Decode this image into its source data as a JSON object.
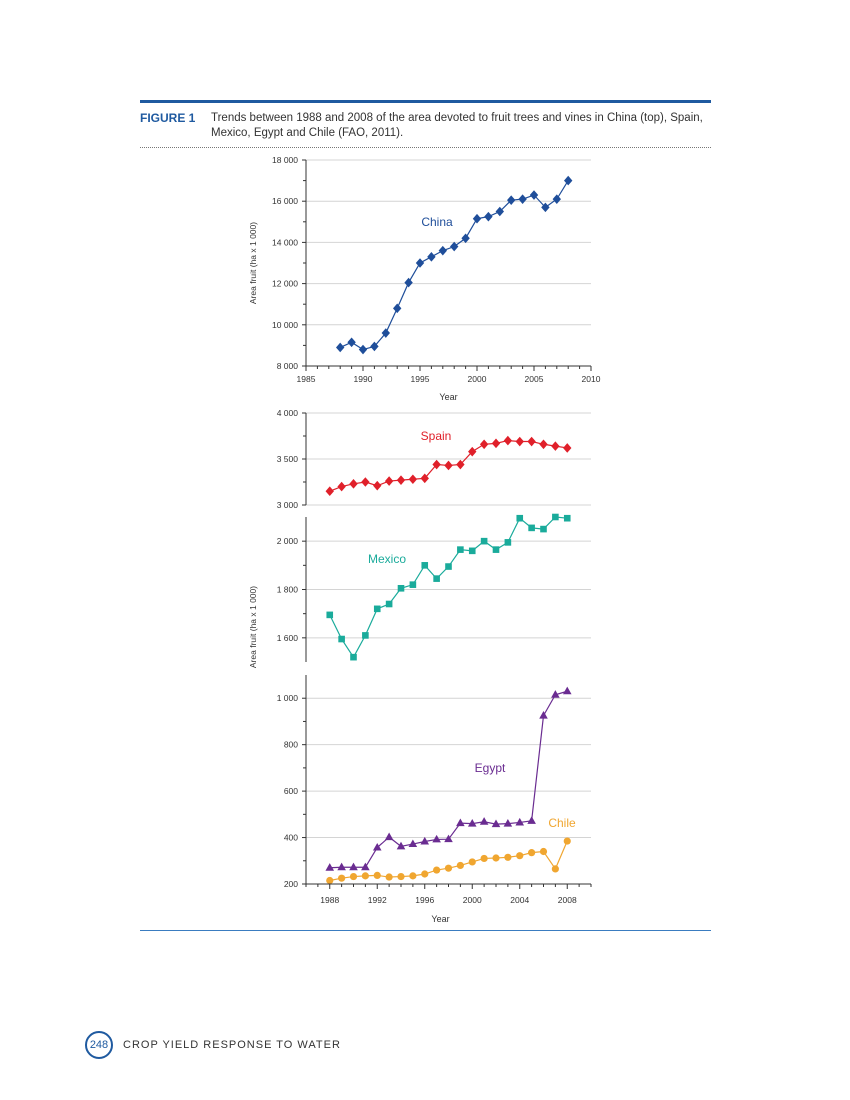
{
  "figure": {
    "label": "FIGURE 1",
    "caption": "Trends between 1988 and 2008 of the area devoted to fruit trees and vines in China (top), Spain, Mexico, Egypt and Chile (FAO, 2011)."
  },
  "footer": {
    "page_number": "248",
    "running_title": "CROP YIELD RESPONSE TO WATER"
  },
  "colors": {
    "china": "#1f4e9a",
    "spain": "#e0202a",
    "mexico": "#1aab9b",
    "egypt": "#6a2c91",
    "chile": "#f0a630",
    "rule": "#1f5aa0"
  },
  "chart_data": [
    {
      "type": "line",
      "ylabel": "Area fruit (ha x 1 000)",
      "xlabel": "Year",
      "xlim": [
        1985,
        2010
      ],
      "ylim": [
        8000,
        18000
      ],
      "x_ticks": [
        "1985",
        "1990",
        "1995",
        "2000",
        "2005",
        "2010"
      ],
      "y_ticks": [
        "8 000",
        "10 000",
        "12 000",
        "14 000",
        "16 000",
        "18 000"
      ],
      "grid": true,
      "series": [
        {
          "name": "China",
          "marker": "diamond",
          "x": [
            1988,
            1989,
            1990,
            1991,
            1992,
            1993,
            1994,
            1995,
            1996,
            1997,
            1998,
            1999,
            2000,
            2001,
            2002,
            2003,
            2004,
            2005,
            2006,
            2007,
            2008
          ],
          "values": [
            8900,
            9150,
            8800,
            8950,
            9600,
            10800,
            12050,
            13000,
            13300,
            13600,
            13800,
            14200,
            15150,
            15250,
            15500,
            16050,
            16100,
            16300,
            15700,
            16100,
            17000
          ]
        }
      ]
    },
    {
      "type": "line",
      "ylabel": "Area fruit (ha x 1 000)",
      "xlabel": "Year",
      "xlim": [
        1986,
        2010
      ],
      "x_ticks": [
        "1988",
        "1992",
        "1996",
        "2000",
        "2004",
        "2008"
      ],
      "grid": true,
      "panels": [
        {
          "ylim": [
            3000,
            4000
          ],
          "y_ticks": [
            "3 000",
            "3 500",
            "4 000"
          ],
          "series": [
            {
              "name": "Spain",
              "marker": "diamond",
              "x": [
                1988,
                1989,
                1990,
                1991,
                1992,
                1993,
                1994,
                1995,
                1996,
                1997,
                1998,
                1999,
                2000,
                2001,
                2002,
                2003,
                2004,
                2005,
                2006,
                2007,
                2008
              ],
              "values": [
                3150,
                3200,
                3230,
                3250,
                3210,
                3260,
                3270,
                3280,
                3290,
                3440,
                3430,
                3440,
                3580,
                3660,
                3670,
                3700,
                3690,
                3690,
                3660,
                3640,
                3620
              ]
            }
          ]
        },
        {
          "ylim": [
            1500,
            2100
          ],
          "y_ticks": [
            "1 600",
            "1 800",
            "2 000"
          ],
          "series": [
            {
              "name": "Mexico",
              "marker": "square",
              "x": [
                1988,
                1989,
                1990,
                1991,
                1992,
                1993,
                1994,
                1995,
                1996,
                1997,
                1998,
                1999,
                2000,
                2001,
                2002,
                2003,
                2004,
                2005,
                2006,
                2007,
                2008
              ],
              "values": [
                1695,
                1595,
                1520,
                1610,
                1720,
                1740,
                1805,
                1820,
                1900,
                1845,
                1895,
                1965,
                1960,
                2000,
                1965,
                1995,
                2095,
                2055,
                2050,
                2100,
                2095
              ]
            }
          ]
        },
        {
          "ylim": [
            200,
            1100
          ],
          "y_ticks": [
            "200",
            "400",
            "600",
            "800",
            "1 000"
          ],
          "series": [
            {
              "name": "Egypt",
              "marker": "triangle",
              "x": [
                1988,
                1989,
                1990,
                1991,
                1992,
                1993,
                1994,
                1995,
                1996,
                1997,
                1998,
                1999,
                2000,
                2001,
                2002,
                2003,
                2004,
                2005,
                2006,
                2007,
                2008
              ],
              "values": [
                270,
                272,
                272,
                272,
                357,
                402,
                362,
                372,
                383,
                392,
                393,
                462,
                460,
                468,
                458,
                460,
                465,
                472,
                925,
                1015,
                1030
              ]
            },
            {
              "name": "Chile",
              "marker": "circle",
              "x": [
                1988,
                1989,
                1990,
                1991,
                1992,
                1993,
                1994,
                1995,
                1996,
                1997,
                1998,
                1999,
                2000,
                2001,
                2002,
                2003,
                2004,
                2005,
                2006,
                2007,
                2008
              ],
              "values": [
                215,
                225,
                232,
                235,
                237,
                230,
                232,
                235,
                243,
                260,
                268,
                280,
                295,
                310,
                312,
                315,
                322,
                335,
                340,
                265,
                385
              ]
            }
          ]
        }
      ]
    }
  ]
}
